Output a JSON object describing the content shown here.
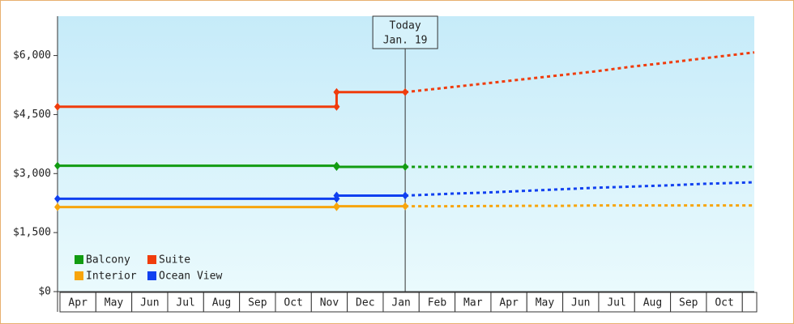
{
  "chart_data": {
    "type": "line",
    "categories": [
      "Apr",
      "May",
      "Jun",
      "Jul",
      "Aug",
      "Sep",
      "Oct",
      "Nov",
      "Dec",
      "Jan",
      "Feb",
      "Mar",
      "Apr",
      "May",
      "Jun",
      "Jul",
      "Aug",
      "Sep",
      "Oct",
      null
    ],
    "x": [
      0,
      7.77,
      7.77,
      9.68,
      11,
      12,
      13,
      14,
      15,
      16,
      17,
      18,
      19.4
    ],
    "xlim": [
      0,
      19.4
    ],
    "ylim": [
      0,
      7000
    ],
    "yticks": [
      {
        "value": 0,
        "label": "$0"
      },
      {
        "value": 1500,
        "label": "$1,500"
      },
      {
        "value": 3000,
        "label": "$3,000"
      },
      {
        "value": 4500,
        "label": "$4,500"
      },
      {
        "value": 6000,
        "label": "$6,000"
      }
    ],
    "annotation": {
      "x": 9.68,
      "lines": [
        "Today",
        "Jan. 19"
      ]
    },
    "series": [
      {
        "name": "Balcony",
        "color": "#129c12",
        "values": [
          3200,
          3200,
          3170,
          3170,
          3170,
          3170,
          3170,
          3170,
          3170,
          3170,
          3170,
          3170,
          3170
        ]
      },
      {
        "name": "Suite",
        "color": "#f03c0c",
        "values": [
          4700,
          4700,
          5070,
          5070,
          5200,
          5300,
          5400,
          5500,
          5600,
          5720,
          5820,
          5930,
          6080
        ]
      },
      {
        "name": "Interior",
        "color": "#f7a50c",
        "values": [
          2150,
          2150,
          2170,
          2170,
          2170,
          2175,
          2180,
          2180,
          2190,
          2190,
          2190,
          2190,
          2190
        ]
      },
      {
        "name": "Ocean View",
        "color": "#1040f0",
        "values": [
          2360,
          2360,
          2440,
          2440,
          2490,
          2520,
          2560,
          2600,
          2640,
          2670,
          2700,
          2740,
          2780
        ]
      }
    ]
  }
}
